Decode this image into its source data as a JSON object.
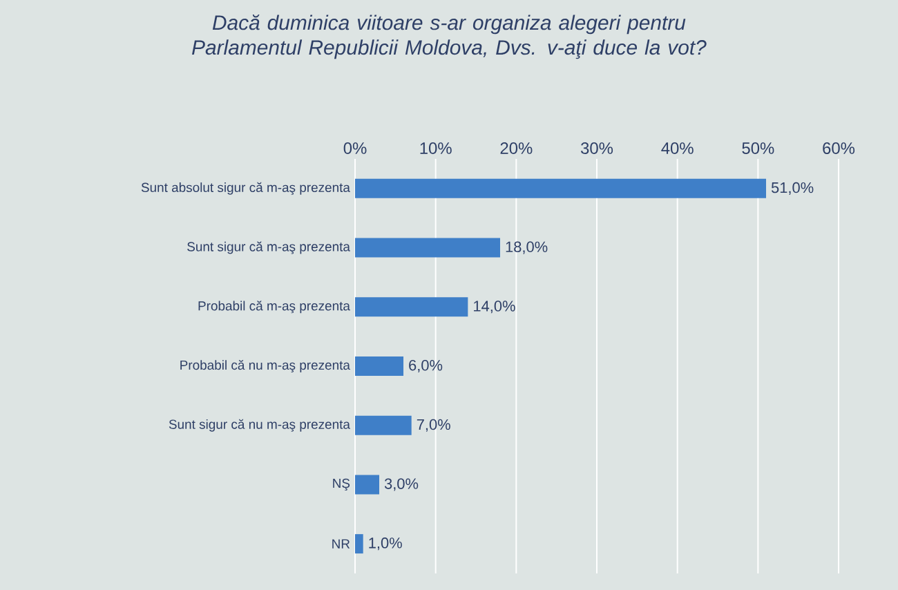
{
  "chart_data": {
    "type": "bar",
    "orientation": "horizontal",
    "title": "*Dacă duminica viitoare s-ar organiza alegeri pentru Parlamentul Republicii Moldova, Dvs. v-aţi duce la vot?*",
    "categories": [
      "Sunt absolut sigur că m-aş prezenta",
      "Sunt sigur că m-aş prezenta",
      "Probabil că m-aş prezenta",
      "Probabil că nu m-aş prezenta",
      "Sunt sigur că nu m-aş prezenta",
      "NŞ",
      "NR"
    ],
    "values": [
      51.0,
      18.0,
      14.0,
      6.0,
      7.0,
      3.0,
      1.0
    ],
    "value_labels": [
      "51,0%",
      "18,0%",
      "14,0%",
      "6,0%",
      "7,0%",
      "3,0%",
      "1,0%"
    ],
    "color": "#3f7fc8",
    "xlim": [
      0,
      60
    ],
    "xticks": [
      {
        "value": 0,
        "label": "0%"
      },
      {
        "value": 10,
        "label": "10%"
      },
      {
        "value": 20,
        "label": "20%"
      },
      {
        "value": 30,
        "label": "30%"
      },
      {
        "value": 40,
        "label": "40%"
      },
      {
        "value": 50,
        "label": "50%"
      },
      {
        "value": 60,
        "label": "60%"
      }
    ],
    "grid": "x"
  }
}
